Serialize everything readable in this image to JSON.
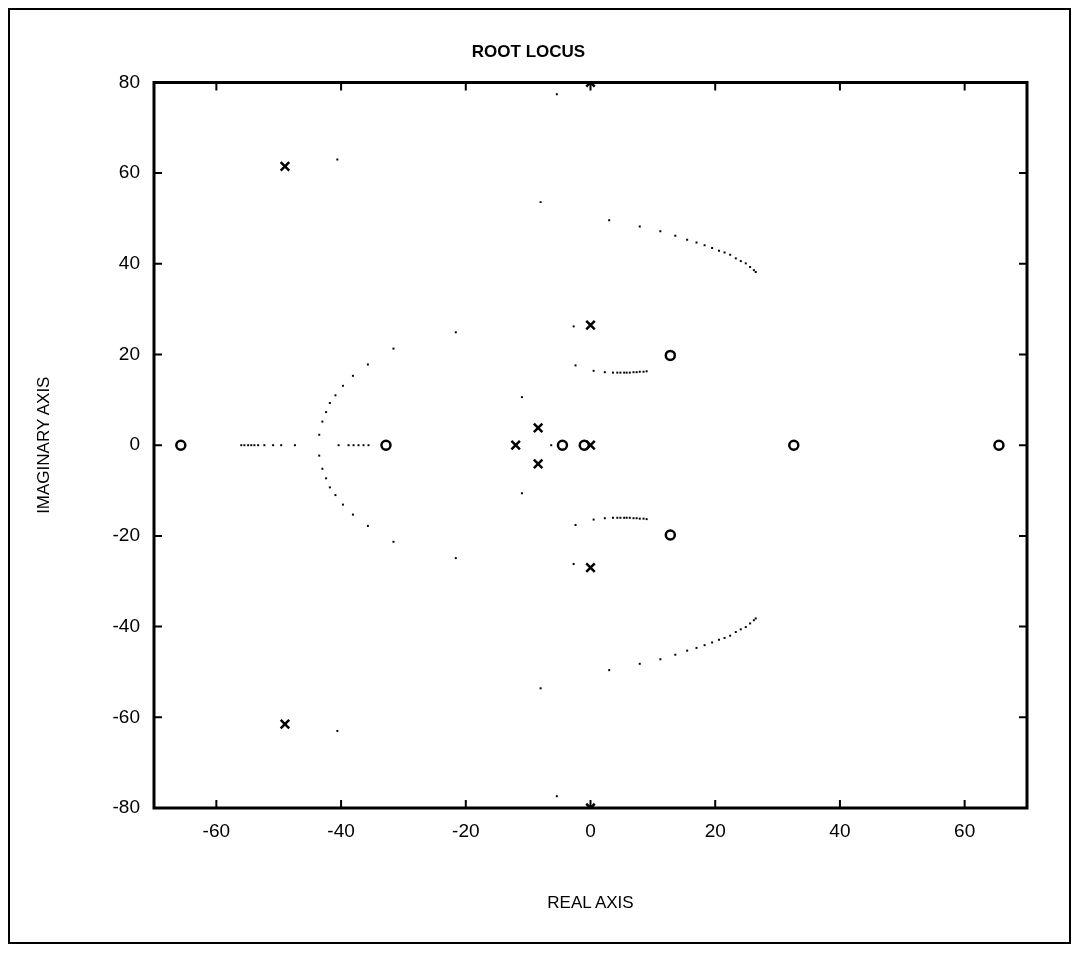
{
  "chart_data": {
    "type": "scatter",
    "title": "ROOT LOCUS",
    "xlabel": "REAL AXIS",
    "ylabel": "IMAGINARY AXIS",
    "xlim": [
      -70,
      70
    ],
    "xticks": [
      -60,
      -40,
      -20,
      0,
      20,
      40,
      60
    ],
    "ylim": [
      -80,
      80
    ],
    "yticks": [
      -80,
      -60,
      -40,
      -20,
      0,
      20,
      40,
      60,
      80
    ],
    "series": [
      {
        "color": "#000000",
        "marker": "square",
        "x": [
          -56.0,
          -55.5,
          -54.9,
          -54.4,
          -53.9,
          -53.3,
          -52.3,
          -50.9,
          -49.6,
          -47.4,
          -40.4,
          -38.8,
          -38.0,
          -37.2,
          -36.4,
          -35.6,
          -43.5,
          -43.0,
          -42.4,
          -41.8,
          -40.9,
          -39.7,
          -38.1,
          -35.7,
          -31.6,
          -21.6,
          -8.0,
          -5.4,
          -40.6,
          -43.5,
          -43.0,
          -42.4,
          -41.8,
          -40.9,
          -39.7,
          -38.1,
          -35.7,
          -31.6,
          -21.6,
          -8.0,
          -5.4,
          -40.6,
          -11.0,
          -2.7,
          -2.4,
          -6.3,
          -11.0,
          -2.7,
          -2.4,
          0.5,
          2.3,
          3.6,
          4.3,
          4.8,
          5.4,
          5.8,
          6.3,
          6.9,
          7.4,
          7.9,
          8.5,
          9.0,
          0.5,
          2.3,
          3.6,
          4.3,
          4.8,
          5.4,
          5.8,
          6.3,
          6.9,
          7.4,
          7.9,
          8.5,
          9.0,
          3.0,
          7.9,
          11.2,
          13.6,
          15.5,
          17.0,
          18.3,
          19.5,
          20.6,
          21.5,
          22.4,
          23.3,
          24.1,
          24.9,
          25.6,
          26.2,
          26.5,
          3.0,
          7.9,
          11.2,
          13.6,
          15.5,
          17.0,
          18.3,
          19.5,
          20.6,
          21.5,
          22.4,
          23.3,
          24.1,
          24.9,
          25.6,
          26.2,
          26.5
        ],
        "values": [
          0,
          0,
          0,
          0,
          0,
          0,
          0,
          0,
          0,
          0,
          0,
          0,
          0,
          0,
          0,
          0,
          2.3,
          5.2,
          7.3,
          9.3,
          11.0,
          13.1,
          15.3,
          17.8,
          21.3,
          24.9,
          53.6,
          77.4,
          63.0,
          -2.3,
          -5.2,
          -7.3,
          -9.3,
          -11.0,
          -13.1,
          -15.3,
          -17.8,
          -21.3,
          -24.9,
          -53.6,
          -77.4,
          -63.0,
          10.6,
          26.2,
          17.6,
          0,
          -10.6,
          -26.2,
          -17.6,
          16.4,
          16.1,
          16.0,
          16.0,
          16.0,
          16.0,
          16.0,
          16.0,
          16.1,
          16.1,
          16.2,
          16.2,
          16.3,
          -16.4,
          -16.1,
          -16.0,
          -16.0,
          -16.0,
          -16.0,
          -16.0,
          -16.0,
          -16.1,
          -16.1,
          -16.2,
          -16.2,
          -16.3,
          49.6,
          48.2,
          47.2,
          46.2,
          45.3,
          44.7,
          44.1,
          43.5,
          42.9,
          42.5,
          42.0,
          41.2,
          40.6,
          40.1,
          39.3,
          38.6,
          38.2,
          -49.6,
          -48.2,
          -47.2,
          -46.2,
          -45.3,
          -44.7,
          -44.1,
          -43.5,
          -42.9,
          -42.5,
          -42.0,
          -41.2,
          -40.6,
          -40.1,
          -39.3,
          -38.6,
          -38.2
        ]
      },
      {
        "color": "#000000",
        "marker": "cross",
        "x": [
          -49.0,
          -49.0,
          0,
          0,
          -8.4,
          -8.4,
          -12,
          0,
          0,
          0
        ],
        "values": [
          61.5,
          -61.5,
          26.5,
          -27,
          3.8,
          -4.1,
          0,
          0,
          80,
          -80
        ]
      },
      {
        "color": "#000000",
        "marker": "circle",
        "x": [
          -65.7,
          -32.8,
          -4.5,
          -1,
          12.8,
          12.8,
          32.6,
          65.5
        ],
        "values": [
          0,
          0,
          0,
          0,
          19.8,
          -19.8,
          0,
          0
        ]
      }
    ]
  }
}
